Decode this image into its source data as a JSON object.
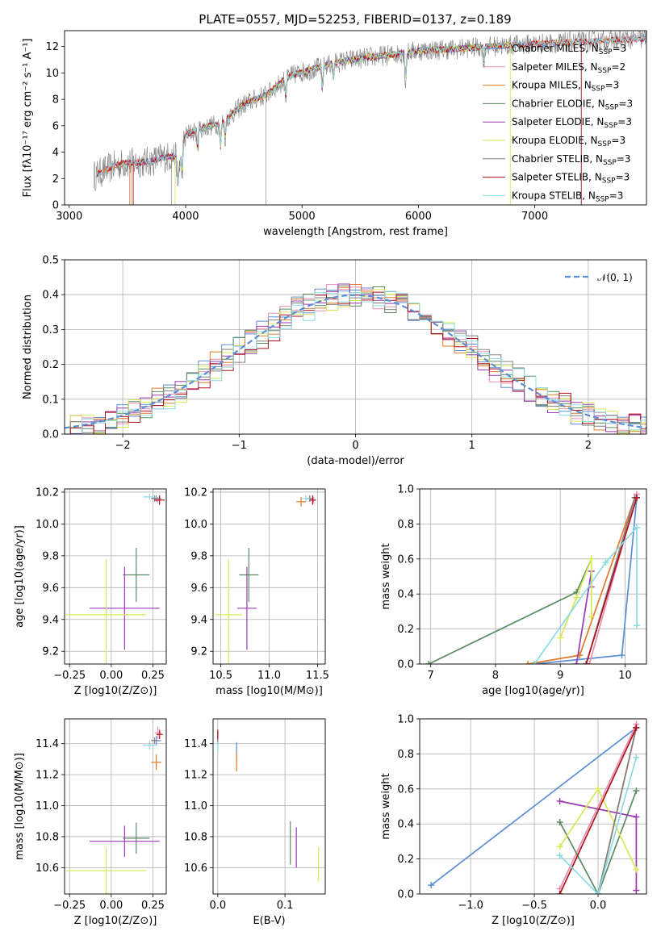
{
  "colors": {
    "Chabrier MILES": "#5b8ed4",
    "Salpeter MILES": "#e98fb2",
    "Kroupa MILES": "#e07b27",
    "Chabrier ELODIE": "#5c8a63",
    "Salpeter ELODIE": "#9a3bb0",
    "Kroupa ELODIE": "#d6ea55",
    "Chabrier STELIB": "#808080",
    "Salpeter STELIB": "#b0101a",
    "Kroupa STELIB": "#8ddbe1"
  },
  "chart_data": [
    {
      "id": "spectrum",
      "type": "line",
      "title": "PLATE=0557, MJD=52253, FIBERID=0137, z=0.189",
      "xlabel": "wavelength [Angstrom, rest frame]",
      "ylabel": "Flux [fλ10⁻¹⁷ erg cm⁻² s⁻¹ A⁻¹]",
      "xlim": [
        2960,
        7960
      ],
      "ylim": [
        0,
        13.2
      ],
      "xticks": [
        3000,
        4000,
        5000,
        6000,
        7000
      ],
      "yticks": [
        0,
        2,
        4,
        6,
        8,
        10,
        12
      ],
      "grid": false,
      "legend_position": "top-right",
      "spectrum_range": [
        3210,
        7960
      ],
      "spectrum_knots": [
        [
          3210,
          2.2
        ],
        [
          3400,
          3.0
        ],
        [
          3500,
          3.2
        ],
        [
          3600,
          3.2
        ],
        [
          3700,
          3.3
        ],
        [
          3800,
          3.6
        ],
        [
          3900,
          3.7
        ],
        [
          3950,
          3.2
        ],
        [
          4000,
          5.3
        ],
        [
          4100,
          5.7
        ],
        [
          4300,
          6.2
        ],
        [
          4500,
          7.6
        ],
        [
          4700,
          8.4
        ],
        [
          4900,
          9.8
        ],
        [
          5100,
          10.3
        ],
        [
          5300,
          10.8
        ],
        [
          5500,
          11.1
        ],
        [
          5800,
          11.4
        ],
        [
          6000,
          11.7
        ],
        [
          6300,
          11.8
        ],
        [
          6600,
          12.0
        ],
        [
          7000,
          12.2
        ],
        [
          7500,
          12.4
        ],
        [
          7960,
          12.6
        ]
      ],
      "legend": [
        {
          "name": "Chabrier MILES",
          "nssp": "3"
        },
        {
          "name": "Salpeter MILES",
          "nssp": "2"
        },
        {
          "name": "Kroupa MILES",
          "nssp": "3"
        },
        {
          "name": "Chabrier ELODIE",
          "nssp": "3"
        },
        {
          "name": "Salpeter ELODIE",
          "nssp": "3"
        },
        {
          "name": "Kroupa ELODIE",
          "nssp": "3"
        },
        {
          "name": "Chabrier STELIB",
          "nssp": "3"
        },
        {
          "name": "Salpeter STELIB",
          "nssp": "3"
        },
        {
          "name": "Kroupa STELIB",
          "nssp": "3"
        }
      ]
    },
    {
      "id": "residuals",
      "type": "line",
      "xlabel": "(data-model)/error",
      "ylabel": "Normed distribution",
      "xlim": [
        -2.5,
        2.5
      ],
      "ylim": [
        0,
        0.5
      ],
      "xticks": [
        -2,
        -1,
        0,
        1,
        2
      ],
      "yticks": [
        0.0,
        0.1,
        0.2,
        0.3,
        0.4,
        0.5
      ],
      "grid": true,
      "legend_position": "top-right",
      "legend": [
        {
          "name": "𝒩(0, 1)"
        }
      ],
      "bin_width": 0.1
    },
    {
      "id": "age-vs-Z",
      "type": "scatter",
      "xlabel": "Z [log10(Z/Z⊙)]",
      "ylabel": "age  [log10(age/yr)]",
      "xlim": [
        -0.28,
        0.33
      ],
      "ylim": [
        9.12,
        10.22
      ],
      "xticks": [
        -0.25,
        0.0,
        0.25
      ],
      "yticks": [
        9.2,
        9.4,
        9.6,
        9.8,
        10.0,
        10.2
      ],
      "grid": true,
      "points": [
        {
          "model": "Chabrier MILES",
          "x": 0.27,
          "y": 10.16,
          "xerr": 0.03,
          "yerr": 0.02
        },
        {
          "model": "Salpeter MILES",
          "x": 0.28,
          "y": 10.15,
          "xerr": 0.02,
          "yerr": 0.02
        },
        {
          "model": "Kroupa MILES",
          "x": 0.26,
          "y": 10.16,
          "xerr": 0.02,
          "yerr": 0.01
        },
        {
          "model": "Chabrier ELODIE",
          "x": 0.15,
          "y": 9.68,
          "xerr": 0.08,
          "yerr": 0.17
        },
        {
          "model": "Salpeter ELODIE",
          "x": 0.08,
          "y": 9.47,
          "xerr": 0.21,
          "yerr": 0.26
        },
        {
          "model": "Kroupa ELODIE",
          "x": -0.03,
          "y": 9.43,
          "xerr": 0.24,
          "yerr": 0.35
        },
        {
          "model": "Chabrier STELIB",
          "x": 0.26,
          "y": 10.16,
          "xerr": 0.02,
          "yerr": 0.02
        },
        {
          "model": "Salpeter STELIB",
          "x": 0.29,
          "y": 10.15,
          "xerr": 0.03,
          "yerr": 0.03
        },
        {
          "model": "Kroupa STELIB",
          "x": 0.23,
          "y": 10.17,
          "xerr": 0.04,
          "yerr": 0.02
        }
      ]
    },
    {
      "id": "age-vs-mass",
      "type": "scatter",
      "xlabel": "mass [log10(M/M⊙)]",
      "ylabel": "",
      "xlim": [
        10.42,
        11.58
      ],
      "ylim": [
        9.12,
        10.22
      ],
      "xticks": [
        10.5,
        11.0,
        11.5
      ],
      "yticks": [
        9.2,
        9.4,
        9.6,
        9.8,
        10.0,
        10.2
      ],
      "grid": true,
      "points": [
        {
          "model": "Chabrier MILES",
          "x": 11.42,
          "y": 10.16,
          "xerr": 0.03,
          "yerr": 0.02
        },
        {
          "model": "Salpeter MILES",
          "x": 11.46,
          "y": 10.15,
          "xerr": 0.03,
          "yerr": 0.02
        },
        {
          "model": "Kroupa MILES",
          "x": 11.33,
          "y": 10.14,
          "xerr": 0.05,
          "yerr": 0.03
        },
        {
          "model": "Chabrier ELODIE",
          "x": 10.79,
          "y": 9.68,
          "xerr": 0.1,
          "yerr": 0.17
        },
        {
          "model": "Salpeter ELODIE",
          "x": 10.77,
          "y": 9.47,
          "xerr": 0.1,
          "yerr": 0.26
        },
        {
          "model": "Kroupa ELODIE",
          "x": 10.58,
          "y": 9.43,
          "xerr": 0.14,
          "yerr": 0.35
        },
        {
          "model": "Chabrier STELIB",
          "x": 11.42,
          "y": 10.16,
          "xerr": 0.03,
          "yerr": 0.02
        },
        {
          "model": "Salpeter STELIB",
          "x": 11.45,
          "y": 10.15,
          "xerr": 0.03,
          "yerr": 0.03
        },
        {
          "model": "Kroupa STELIB",
          "x": 11.38,
          "y": 10.16,
          "xerr": 0.04,
          "yerr": 0.02
        }
      ]
    },
    {
      "id": "mass-weight-vs-age",
      "type": "line",
      "xlabel": "age  [log10(age/yr)]",
      "ylabel": "mass weight",
      "xlim": [
        6.83,
        10.33
      ],
      "ylim": [
        0,
        1
      ],
      "xticks": [
        7,
        8,
        9,
        10
      ],
      "yticks": [
        0.0,
        0.2,
        0.4,
        0.6,
        0.8,
        1.0
      ],
      "grid": true,
      "series": [
        {
          "model": "Chabrier MILES",
          "x": [
            8.6,
            9.95,
            10.18
          ],
          "y": [
            0.0,
            0.05,
            0.95
          ]
        },
        {
          "model": "Salpeter MILES",
          "x": [
            9.45,
            10.18
          ],
          "y": [
            0.0,
            0.97
          ]
        },
        {
          "model": "Kroupa MILES",
          "x": [
            8.5,
            9.3,
            10.15
          ],
          "y": [
            0.0,
            0.05,
            0.95
          ]
        },
        {
          "model": "Chabrier ELODIE",
          "x": [
            6.97,
            9.25,
            9.48
          ],
          "y": [
            0.0,
            0.41,
            0.6
          ]
        },
        {
          "model": "Salpeter ELODIE",
          "x": [
            9.25,
            9.48,
            9.48
          ],
          "y": [
            0.0,
            0.53,
            0.44
          ]
        },
        {
          "model": "Kroupa ELODIE",
          "x": [
            9.0,
            9.25,
            9.48,
            9.48
          ],
          "y": [
            0.15,
            0.38,
            0.6,
            0.27
          ]
        },
        {
          "model": "Chabrier STELIB",
          "x": [
            9.4,
            10.15
          ],
          "y": [
            0.0,
            0.95
          ]
        },
        {
          "model": "Salpeter STELIB",
          "x": [
            9.4,
            10.18
          ],
          "y": [
            0.0,
            0.95
          ]
        },
        {
          "model": "Kroupa STELIB",
          "x": [
            8.6,
            9.7,
            10.18,
            10.18
          ],
          "y": [
            0.0,
            0.58,
            0.78,
            0.22
          ]
        }
      ]
    },
    {
      "id": "mass-vs-Z",
      "type": "scatter",
      "xlabel": "Z [log10(Z/Z⊙)]",
      "ylabel": "mass [log10(M/M⊙)]",
      "xlim": [
        -0.28,
        0.33
      ],
      "ylim": [
        10.43,
        11.56
      ],
      "xticks": [
        -0.25,
        0.0,
        0.25
      ],
      "yticks": [
        10.6,
        10.8,
        11.0,
        11.2,
        11.4
      ],
      "grid": true,
      "points": [
        {
          "model": "Chabrier MILES",
          "x": 0.27,
          "y": 11.42,
          "xerr": 0.03,
          "yerr": 0.03
        },
        {
          "model": "Salpeter MILES",
          "x": 0.28,
          "y": 11.47,
          "xerr": 0.02,
          "yerr": 0.04
        },
        {
          "model": "Kroupa MILES",
          "x": 0.27,
          "y": 11.28,
          "xerr": 0.03,
          "yerr": 0.05
        },
        {
          "model": "Chabrier ELODIE",
          "x": 0.15,
          "y": 10.79,
          "xerr": 0.08,
          "yerr": 0.1
        },
        {
          "model": "Salpeter ELODIE",
          "x": 0.08,
          "y": 10.77,
          "xerr": 0.21,
          "yerr": 0.1
        },
        {
          "model": "Kroupa ELODIE",
          "x": -0.03,
          "y": 10.58,
          "xerr": 0.24,
          "yerr": 0.15
        },
        {
          "model": "Chabrier STELIB",
          "x": 0.26,
          "y": 11.42,
          "xerr": 0.02,
          "yerr": 0.02
        },
        {
          "model": "Salpeter STELIB",
          "x": 0.29,
          "y": 11.46,
          "xerr": 0.02,
          "yerr": 0.03
        },
        {
          "model": "Kroupa STELIB",
          "x": 0.23,
          "y": 11.39,
          "xerr": 0.04,
          "yerr": 0.03
        }
      ]
    },
    {
      "id": "mass-vs-EBV",
      "type": "scatter",
      "xlabel": "E(B-V)",
      "ylabel": "",
      "xlim": [
        -0.007,
        0.16
      ],
      "ylim": [
        10.43,
        11.56
      ],
      "xticks": [
        0.0,
        0.1
      ],
      "yticks": [
        10.6,
        10.8,
        11.0,
        11.2,
        11.4
      ],
      "grid": true,
      "points": [
        {
          "model": "Chabrier MILES",
          "x": 0.028,
          "y": 11.35,
          "xerr": 0.0,
          "yerr": 0.06
        },
        {
          "model": "Salpeter MILES",
          "x": 0.0,
          "y": 11.45,
          "xerr": 0.0,
          "yerr": 0.04
        },
        {
          "model": "Kroupa MILES",
          "x": 0.028,
          "y": 11.28,
          "xerr": 0.0,
          "yerr": 0.06
        },
        {
          "model": "Chabrier ELODIE",
          "x": 0.108,
          "y": 10.76,
          "xerr": 0.0,
          "yerr": 0.14
        },
        {
          "model": "Salpeter ELODIE",
          "x": 0.117,
          "y": 10.73,
          "xerr": 0.0,
          "yerr": 0.13
        },
        {
          "model": "Kroupa ELODIE",
          "x": 0.15,
          "y": 10.62,
          "xerr": 0.0,
          "yerr": 0.11
        },
        {
          "model": "Chabrier STELIB",
          "x": 0.0,
          "y": 11.44,
          "xerr": 0.0,
          "yerr": 0.04
        },
        {
          "model": "Salpeter STELIB",
          "x": 0.0,
          "y": 11.46,
          "xerr": 0.0,
          "yerr": 0.03
        },
        {
          "model": "Kroupa STELIB",
          "x": 0.0,
          "y": 11.38,
          "xerr": 0.0,
          "yerr": 0.03
        }
      ]
    },
    {
      "id": "mass-weight-vs-Z",
      "type": "line",
      "xlabel": "Z [log10(Z/Z⊙)]",
      "ylabel": "mass weight",
      "xlim": [
        -1.4,
        0.38
      ],
      "ylim": [
        0,
        1
      ],
      "xticks": [
        -1.0,
        -0.5,
        0.0
      ],
      "yticks": [
        0.0,
        0.2,
        0.4,
        0.6,
        0.8,
        1.0
      ],
      "grid": true,
      "series": [
        {
          "model": "Chabrier MILES",
          "x": [
            -1.31,
            0.3
          ],
          "y": [
            0.05,
            0.95
          ]
        },
        {
          "model": "Salpeter MILES",
          "x": [
            -0.3,
            0.3
          ],
          "y": [
            0.03,
            0.97
          ]
        },
        {
          "model": "Kroupa MILES",
          "x": [
            0.0,
            0.3
          ],
          "y": [
            0.0,
            0.95
          ]
        },
        {
          "model": "Chabrier ELODIE",
          "x": [
            -0.3,
            0.0,
            0.3
          ],
          "y": [
            0.41,
            0.0,
            0.59
          ]
        },
        {
          "model": "Salpeter ELODIE",
          "x": [
            -0.3,
            0.3,
            0.3
          ],
          "y": [
            0.53,
            0.44,
            0.02
          ]
        },
        {
          "model": "Kroupa ELODIE",
          "x": [
            -0.3,
            0.0,
            0.3
          ],
          "y": [
            0.27,
            0.6,
            0.14
          ]
        },
        {
          "model": "Chabrier STELIB",
          "x": [
            0.0,
            0.3
          ],
          "y": [
            0.0,
            0.95
          ]
        },
        {
          "model": "Salpeter STELIB",
          "x": [
            -0.3,
            0.3
          ],
          "y": [
            0.0,
            0.95
          ]
        },
        {
          "model": "Kroupa STELIB",
          "x": [
            -0.3,
            0.0,
            0.3
          ],
          "y": [
            0.22,
            0.0,
            0.78
          ]
        }
      ]
    }
  ]
}
